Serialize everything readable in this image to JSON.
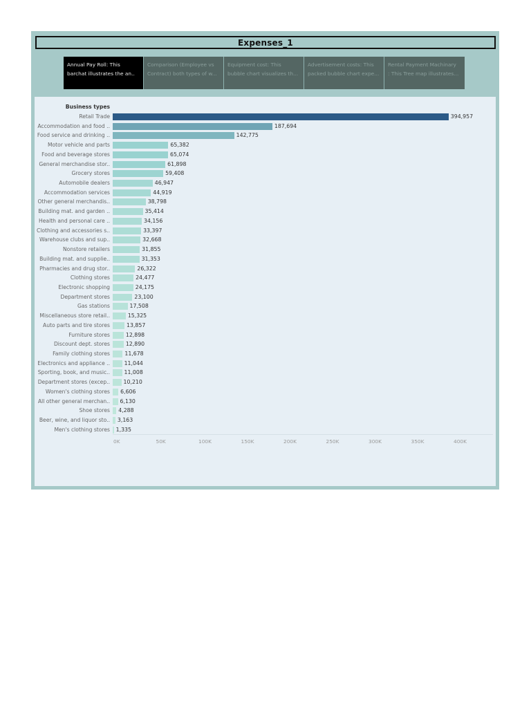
{
  "dashboard": {
    "title": "Expenses_1",
    "tabs": [
      {
        "line1": "Annual Pay Roll: This",
        "line2": "barchat illustrates the an..",
        "active": true
      },
      {
        "line1": "Comparison (Employee vs",
        "line2": "Contract) both types of w...",
        "active": false
      },
      {
        "line1": "Equipment cost: This",
        "line2": "bubble chart visualizes th...",
        "active": false
      },
      {
        "line1": "Advertisement costs: This",
        "line2": "packed bubble chart expe...",
        "active": false
      },
      {
        "line1": "Rental Payment Machinary",
        "line2": ": This Tree map illustrates...",
        "active": false
      }
    ]
  },
  "colors": {
    "frame_bg": "#a6c9c8",
    "panel_bg": "#e7eff5",
    "tab_active_bg": "#000000",
    "tab_inactive_bg": "#546663"
  },
  "chart_data": {
    "type": "bar",
    "orientation": "horizontal",
    "title": "",
    "ylabel": "Business types",
    "xlabel": "",
    "xlim": [
      0,
      445000
    ],
    "grid": false,
    "legend": null,
    "x_ticks": [
      "0K",
      "50K",
      "100K",
      "150K",
      "200K",
      "250K",
      "300K",
      "350K",
      "400K"
    ],
    "x_tick_values": [
      0,
      50000,
      100000,
      150000,
      200000,
      250000,
      300000,
      350000,
      400000
    ],
    "categories": [
      "Retail Trade",
      "Accommodation and food ..",
      "Food service and drinking ..",
      "Motor vehicle and parts",
      "Food and beverage stores",
      "General merchandise stor..",
      "Grocery stores",
      "Automobile dealers",
      "Accommodation services",
      "Other general merchandis..",
      "Building mat. and garden ..",
      "Health and personal care ..",
      "Clothing and accessories s..",
      "Warehouse clubs and sup..",
      "Nonstore retailers",
      "Building mat. and supplie..",
      "Pharmacies and drug stor..",
      "Clothing stores",
      "Electronic shopping",
      "Department stores",
      "Gas stations",
      "Miscellaneous store retail..",
      "Auto parts and tire stores",
      "Furniture stores",
      "Discount dept. stores",
      "Family clothing stores",
      "Electronics and appliance ..",
      "Sporting, book, and  music..",
      "Department stores (excep..",
      "Women's clothing stores",
      "All other general merchan..",
      "Shoe stores",
      "Beer, wine, and liquor sto..",
      "Men's clothing stores"
    ],
    "values": [
      394957,
      187694,
      142775,
      65382,
      65074,
      61898,
      59408,
      46947,
      44919,
      38798,
      35414,
      34156,
      33397,
      32668,
      31855,
      31353,
      26322,
      24477,
      24175,
      23100,
      17508,
      15325,
      13857,
      12898,
      12890,
      11678,
      11044,
      11008,
      10210,
      6606,
      6130,
      4288,
      3163,
      1335
    ],
    "value_labels": [
      "394,957",
      "187,694",
      "142,775",
      "65,382",
      "65,074",
      "61,898",
      "59,408",
      "46,947",
      "44,919",
      "38,798",
      "35,414",
      "34,156",
      "33,397",
      "32,668",
      "31,855",
      "31,353",
      "26,322",
      "24,477",
      "24,175",
      "23,100",
      "17,508",
      "15,325",
      "13,857",
      "12,898",
      "12,890",
      "11,678",
      "11,044",
      "11,008",
      "10,210",
      "6,606",
      "6,130",
      "4,288",
      "3,163",
      "1,335"
    ],
    "color_scale": {
      "low": "#c2e8dc",
      "mid": "#98d1d0",
      "high": "#2b5a87"
    }
  }
}
